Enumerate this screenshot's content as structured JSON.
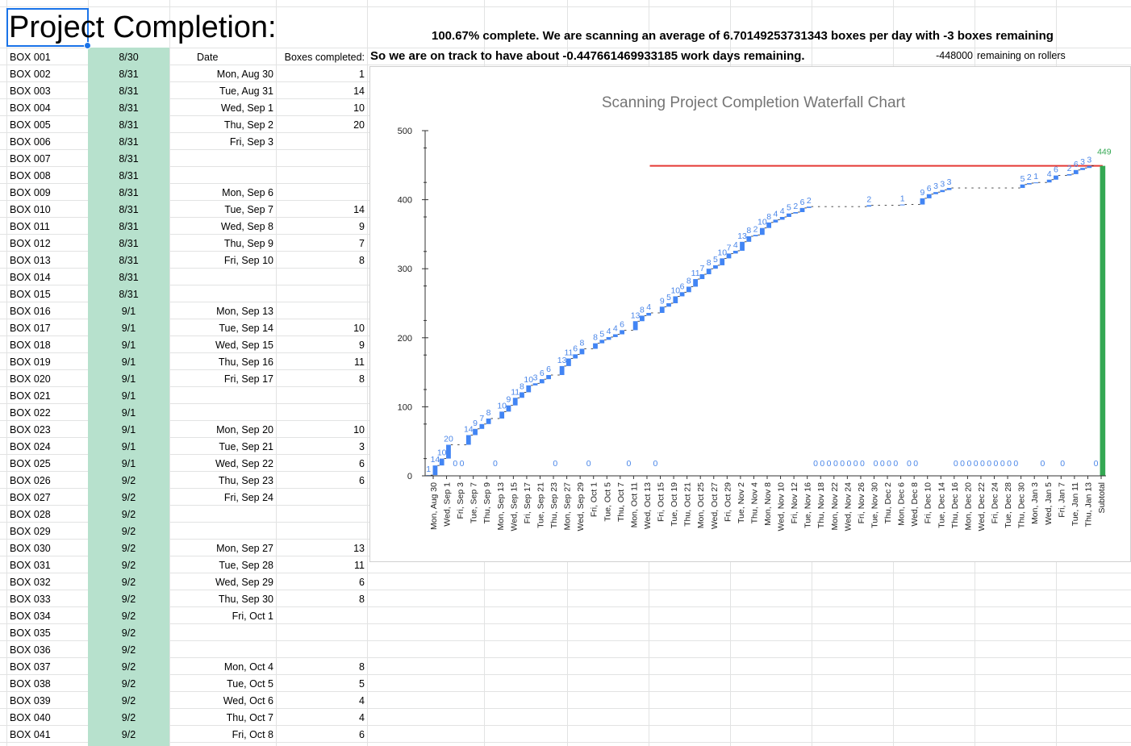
{
  "sheet": {
    "title": "Project Completion:",
    "status_line_1": "100.67%  complete. We are scanning an average of 6.70149253731343 boxes per day with -3 boxes remaining",
    "status_line_2": "So we are on track to have about -0.447661469933185 work days remaining.",
    "rollers_value": "-448000",
    "rollers_label": "remaining on rollers",
    "header_date": "Date",
    "header_boxes": "Boxes completed:",
    "colors": {
      "green_fill": "#b7e1cd",
      "selection": "#1a73e8"
    },
    "boxes": [
      {
        "name": "BOX 001",
        "date": "8/30"
      },
      {
        "name": "BOX 002",
        "date": "8/31"
      },
      {
        "name": "BOX 003",
        "date": "8/31"
      },
      {
        "name": "BOX 004",
        "date": "8/31"
      },
      {
        "name": "BOX 005",
        "date": "8/31"
      },
      {
        "name": "BOX 006",
        "date": "8/31"
      },
      {
        "name": "BOX 007",
        "date": "8/31"
      },
      {
        "name": "BOX 008",
        "date": "8/31"
      },
      {
        "name": "BOX 009",
        "date": "8/31"
      },
      {
        "name": "BOX 010",
        "date": "8/31"
      },
      {
        "name": "BOX 011",
        "date": "8/31"
      },
      {
        "name": "BOX 012",
        "date": "8/31"
      },
      {
        "name": "BOX 013",
        "date": "8/31"
      },
      {
        "name": "BOX 014",
        "date": "8/31"
      },
      {
        "name": "BOX 015",
        "date": "8/31"
      },
      {
        "name": "BOX 016",
        "date": "9/1"
      },
      {
        "name": "BOX 017",
        "date": "9/1"
      },
      {
        "name": "BOX 018",
        "date": "9/1"
      },
      {
        "name": "BOX 019",
        "date": "9/1"
      },
      {
        "name": "BOX 020",
        "date": "9/1"
      },
      {
        "name": "BOX 021",
        "date": "9/1"
      },
      {
        "name": "BOX 022",
        "date": "9/1"
      },
      {
        "name": "BOX 023",
        "date": "9/1"
      },
      {
        "name": "BOX 024",
        "date": "9/1"
      },
      {
        "name": "BOX 025",
        "date": "9/1"
      },
      {
        "name": "BOX 026",
        "date": "9/2"
      },
      {
        "name": "BOX 027",
        "date": "9/2"
      },
      {
        "name": "BOX 028",
        "date": "9/2"
      },
      {
        "name": "BOX 029",
        "date": "9/2"
      },
      {
        "name": "BOX 030",
        "date": "9/2"
      },
      {
        "name": "BOX 031",
        "date": "9/2"
      },
      {
        "name": "BOX 032",
        "date": "9/2"
      },
      {
        "name": "BOX 033",
        "date": "9/2"
      },
      {
        "name": "BOX 034",
        "date": "9/2"
      },
      {
        "name": "BOX 035",
        "date": "9/2"
      },
      {
        "name": "BOX 036",
        "date": "9/2"
      },
      {
        "name": "BOX 037",
        "date": "9/2"
      },
      {
        "name": "BOX 038",
        "date": "9/2"
      },
      {
        "name": "BOX 039",
        "date": "9/2"
      },
      {
        "name": "BOX 040",
        "date": "9/2"
      },
      {
        "name": "BOX 041",
        "date": "9/2"
      }
    ],
    "daily": [
      {
        "day": "Mon, Aug 30",
        "count": "1"
      },
      {
        "day": "Tue, Aug 31",
        "count": "14"
      },
      {
        "day": "Wed, Sep 1",
        "count": "10"
      },
      {
        "day": "Thu, Sep 2",
        "count": "20"
      },
      {
        "day": "Fri, Sep 3",
        "count": ""
      },
      {
        "day": "",
        "count": ""
      },
      {
        "day": "",
        "count": ""
      },
      {
        "day": "Mon, Sep 6",
        "count": ""
      },
      {
        "day": "Tue, Sep 7",
        "count": "14"
      },
      {
        "day": "Wed, Sep 8",
        "count": "9"
      },
      {
        "day": "Thu, Sep 9",
        "count": "7"
      },
      {
        "day": "Fri, Sep 10",
        "count": "8"
      },
      {
        "day": "",
        "count": ""
      },
      {
        "day": "",
        "count": ""
      },
      {
        "day": "Mon, Sep 13",
        "count": ""
      },
      {
        "day": "Tue, Sep 14",
        "count": "10"
      },
      {
        "day": "Wed, Sep 15",
        "count": "9"
      },
      {
        "day": "Thu, Sep 16",
        "count": "11"
      },
      {
        "day": "Fri, Sep 17",
        "count": "8"
      },
      {
        "day": "",
        "count": ""
      },
      {
        "day": "",
        "count": ""
      },
      {
        "day": "Mon, Sep 20",
        "count": "10"
      },
      {
        "day": "Tue, Sep 21",
        "count": "3"
      },
      {
        "day": "Wed, Sep 22",
        "count": "6"
      },
      {
        "day": "Thu, Sep 23",
        "count": "6"
      },
      {
        "day": "Fri, Sep 24",
        "count": ""
      },
      {
        "day": "",
        "count": ""
      },
      {
        "day": "",
        "count": ""
      },
      {
        "day": "Mon, Sep 27",
        "count": "13"
      },
      {
        "day": "Tue, Sep 28",
        "count": "11"
      },
      {
        "day": "Wed, Sep 29",
        "count": "6"
      },
      {
        "day": "Thu, Sep 30",
        "count": "8"
      },
      {
        "day": "Fri, Oct 1",
        "count": ""
      },
      {
        "day": "",
        "count": ""
      },
      {
        "day": "",
        "count": ""
      },
      {
        "day": "Mon, Oct 4",
        "count": "8"
      },
      {
        "day": "Tue, Oct 5",
        "count": "5"
      },
      {
        "day": "Wed, Oct 6",
        "count": "4"
      },
      {
        "day": "Thu, Oct 7",
        "count": "4"
      },
      {
        "day": "Fri, Oct 8",
        "count": "6"
      }
    ]
  },
  "chart_data": {
    "type": "bar",
    "subtype": "waterfall",
    "title": "Scanning Project Completion Waterfall Chart",
    "ylim": [
      0,
      500
    ],
    "yticks": [
      0,
      100,
      200,
      300,
      400,
      500
    ],
    "grid": false,
    "colors": {
      "increase": "#4285f4",
      "subtotal": "#34a853",
      "target_line": "#e53935",
      "label": "#4a86e8",
      "total_label": "#34a853",
      "title": "#757575"
    },
    "target_line_value": 449,
    "categories_visible": [
      "Mon, Aug 30",
      "Wed, Sep 1",
      "Fri, Sep 3",
      "Tue, Sep 7",
      "Thu, Sep 9",
      "Mon, Sep 13",
      "Wed, Sep 15",
      "Fri, Sep 17",
      "Tue, Sep 21",
      "Thu, Sep 23",
      "Mon, Sep 27",
      "Wed, Sep 29",
      "Fri, Oct 1",
      "Tue, Oct 5",
      "Thu, Oct 7",
      "Mon, Oct 11",
      "Wed, Oct 13",
      "Fri, Oct 15",
      "Tue, Oct 19",
      "Thu, Oct 21",
      "Mon, Oct 25",
      "Wed, Oct 27",
      "Fri, Oct 29",
      "Tue, Nov 2",
      "Thu, Nov 4",
      "Mon, Nov 8",
      "Wed, Nov 10",
      "Fri, Nov 12",
      "Tue, Nov 16",
      "Thu, Nov 18",
      "Mon, Nov 22",
      "Wed, Nov 24",
      "Fri, Nov 26",
      "Tue, Nov 30",
      "Thu, Dec 2",
      "Mon, Dec 6",
      "Wed, Dec 8",
      "Fri, Dec 10",
      "Tue, Dec 14",
      "Thu, Dec 16",
      "Mon, Dec 20",
      "Wed, Dec 22",
      "Fri, Dec 24",
      "Tue, Dec 28",
      "Thu, Dec 30",
      "Mon, Jan 3",
      "Wed, Jan 5",
      "Fri, Jan 7",
      "Tue, Jan 11",
      "Thu, Jan 13",
      "Subtotal"
    ],
    "values": [
      1,
      14,
      10,
      20,
      0,
      0,
      14,
      9,
      7,
      8,
      0,
      10,
      9,
      11,
      8,
      10,
      3,
      6,
      6,
      0,
      13,
      11,
      6,
      8,
      0,
      8,
      5,
      4,
      4,
      6,
      0,
      13,
      8,
      4,
      0,
      9,
      5,
      10,
      6,
      8,
      11,
      7,
      8,
      5,
      10,
      7,
      4,
      13,
      8,
      2,
      10,
      8,
      4,
      4,
      5,
      2,
      6,
      2,
      0,
      0,
      0,
      0,
      0,
      0,
      0,
      0,
      2,
      0,
      0,
      0,
      0,
      1,
      0,
      0,
      9,
      6,
      3,
      3,
      3,
      0,
      0,
      0,
      0,
      0,
      0,
      0,
      0,
      0,
      0,
      5,
      2,
      1,
      0,
      4,
      6,
      0,
      2,
      6,
      3,
      3,
      0
    ],
    "total": 449
  }
}
